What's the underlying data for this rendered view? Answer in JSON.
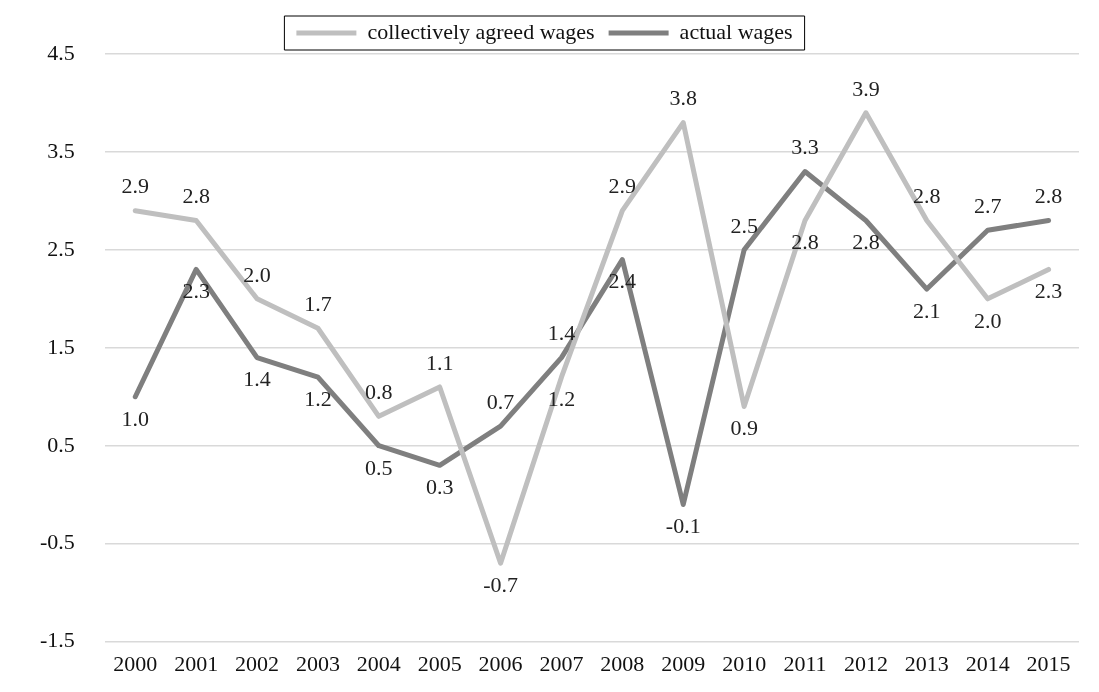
{
  "chart_data": {
    "type": "line",
    "categories": [
      "2000",
      "2001",
      "2002",
      "2003",
      "2004",
      "2005",
      "2006",
      "2007",
      "2008",
      "2009",
      "2010",
      "2011",
      "2012",
      "2013",
      "2014",
      "2015"
    ],
    "series": [
      {
        "name": "collectively agreed wages",
        "color": "#bfbfbf",
        "values": [
          2.9,
          2.8,
          2.0,
          1.7,
          0.8,
          1.1,
          -0.7,
          1.2,
          2.9,
          3.8,
          0.9,
          2.8,
          3.9,
          2.8,
          2.0,
          2.3
        ],
        "value_labels": [
          "2.9",
          "2.8",
          "2.0",
          "1.7",
          "0.8",
          "1.1",
          "-0.7",
          "1.2",
          "2.9",
          "3.8",
          "0.9",
          "2.8",
          "3.9",
          "2.8",
          "2.0",
          "2.3"
        ]
      },
      {
        "name": "actual wages",
        "color": "#7f7f7f",
        "values": [
          1.0,
          2.3,
          1.4,
          1.2,
          0.5,
          0.3,
          0.7,
          1.4,
          2.4,
          -0.1,
          2.5,
          3.3,
          2.8,
          2.1,
          2.7,
          2.8
        ],
        "value_labels": [
          "1.0",
          "2.3",
          "1.4",
          "1.2",
          "0.5",
          "0.3",
          "0.7",
          "1.4",
          "2.4",
          "-0.1",
          "2.5",
          "3.3",
          "2.8",
          "2.1",
          "2.7",
          "2.8"
        ]
      }
    ],
    "ylim": [
      -1.5,
      4.5
    ],
    "yticks": [
      {
        "value": -1.5,
        "label": "-1.5"
      },
      {
        "value": -0.5,
        "label": "-0.5"
      },
      {
        "value": 0.5,
        "label": "0.5"
      },
      {
        "value": 1.5,
        "label": "1.5"
      },
      {
        "value": 2.5,
        "label": "2.5"
      },
      {
        "value": 3.5,
        "label": "3.5"
      },
      {
        "value": 4.5,
        "label": "4.5"
      }
    ],
    "grid": "y",
    "legend": "top",
    "marker": "none",
    "line_style": "solid"
  }
}
